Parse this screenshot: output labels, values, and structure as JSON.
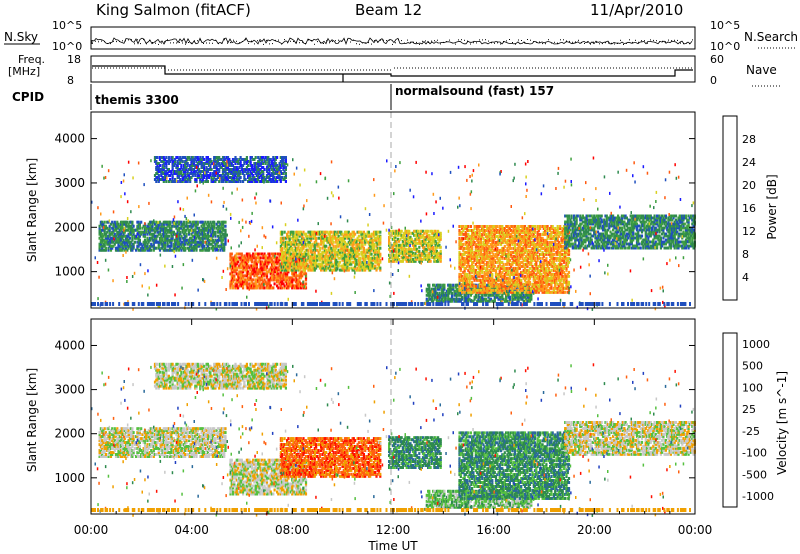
{
  "header": {
    "station": "King Salmon (fitACF)",
    "beam": "Beam 12",
    "date": "11/Apr/2010"
  },
  "noise_panel": {
    "left_label": "N.Sky",
    "right_label": "N.Search",
    "left_ticks": [
      "10^5",
      "10^0"
    ],
    "right_ticks": [
      "10^5",
      "10^0"
    ]
  },
  "freq_panel": {
    "left_label_1": "Freq.",
    "left_label_2": "[MHz]",
    "right_label": "Nave",
    "left_ticks": [
      "18",
      "8"
    ],
    "right_ticks": [
      "60",
      "0"
    ]
  },
  "cpid_panel": {
    "label": "CPID",
    "segments": [
      {
        "name": "themis 3300",
        "start_hour": 0,
        "end_hour": 12
      },
      {
        "name": "normalsound (fast) 157",
        "start_hour": 12,
        "end_hour": 24
      }
    ]
  },
  "time_axis": {
    "label": "Time UT",
    "ticks": [
      "00:00",
      "04:00",
      "08:00",
      "12:00",
      "16:00",
      "20:00",
      "00:00"
    ]
  },
  "chart_data": [
    {
      "type": "heatmap",
      "title": "",
      "parameter": "Power",
      "xlabel": "Time UT",
      "ylabel": "Slant Range [km]",
      "xlim": [
        0,
        24
      ],
      "ylim": [
        180,
        4600
      ],
      "y_ticks": [
        "1000",
        "2000",
        "3000",
        "4000"
      ],
      "colorbar": {
        "label": "Power [dB]",
        "ticks": [
          "4",
          "8",
          "12",
          "16",
          "20",
          "24",
          "28"
        ],
        "colors": [
          "#1a1aff",
          "#1f4fbf",
          "#2f8a4f",
          "#3fa03f",
          "#d9d020",
          "#ff9a1a",
          "#ff5a10",
          "#ff0000"
        ]
      },
      "echo_regions": [
        {
          "t0": 0.3,
          "t1": 5.3,
          "r0": 1450,
          "r1": 2100,
          "level": 2
        },
        {
          "t0": 2.5,
          "t1": 7.7,
          "r0": 3000,
          "r1": 3550,
          "level": 1
        },
        {
          "t0": 5.5,
          "t1": 8.5,
          "r0": 600,
          "r1": 1400,
          "level": 6
        },
        {
          "t0": 7.5,
          "t1": 11.5,
          "r0": 1000,
          "r1": 1900,
          "level": 4
        },
        {
          "t0": 11.8,
          "t1": 13.9,
          "r0": 1200,
          "r1": 1900,
          "level": 4
        },
        {
          "t0": 13.3,
          "t1": 17.5,
          "r0": 300,
          "r1": 700,
          "level": 2
        },
        {
          "t0": 14.6,
          "t1": 19.0,
          "r0": 500,
          "r1": 2000,
          "level": 5
        },
        {
          "t0": 18.8,
          "t1": 24.0,
          "r0": 1500,
          "r1": 2250,
          "level": 2
        }
      ]
    },
    {
      "type": "heatmap",
      "title": "",
      "parameter": "Velocity",
      "xlabel": "Time UT",
      "ylabel": "Slant Range [km]",
      "xlim": [
        0,
        24
      ],
      "ylim": [
        180,
        4600
      ],
      "y_ticks": [
        "1000",
        "2000",
        "3000",
        "4000"
      ],
      "colorbar": {
        "label": "Velocity [m s^-1]",
        "ticks": [
          "1000",
          "500",
          "100",
          "25",
          "-25",
          "-100",
          "-500",
          "-1000"
        ],
        "colors": [
          "#2040c0",
          "#2a6a9a",
          "#2e8a4e",
          "#55c040",
          "#c8c8c8",
          "#f0a000",
          "#ff6010",
          "#ff1000"
        ]
      },
      "echo_regions": [
        {
          "t0": 0.3,
          "t1": 5.3,
          "r0": 1450,
          "r1": 2100,
          "level": 4
        },
        {
          "t0": 2.5,
          "t1": 7.7,
          "r0": 3000,
          "r1": 3550,
          "level": 4
        },
        {
          "t0": 5.5,
          "t1": 8.5,
          "r0": 600,
          "r1": 1400,
          "level": 4
        },
        {
          "t0": 7.5,
          "t1": 11.5,
          "r0": 1000,
          "r1": 1900,
          "level": 6
        },
        {
          "t0": 11.8,
          "t1": 13.9,
          "r0": 1200,
          "r1": 1900,
          "level": 2
        },
        {
          "t0": 13.3,
          "t1": 17.5,
          "r0": 300,
          "r1": 700,
          "level": 3
        },
        {
          "t0": 14.6,
          "t1": 19.0,
          "r0": 500,
          "r1": 2000,
          "level": 2
        },
        {
          "t0": 18.8,
          "t1": 24.0,
          "r0": 1500,
          "r1": 2250,
          "level": 4
        }
      ]
    }
  ]
}
